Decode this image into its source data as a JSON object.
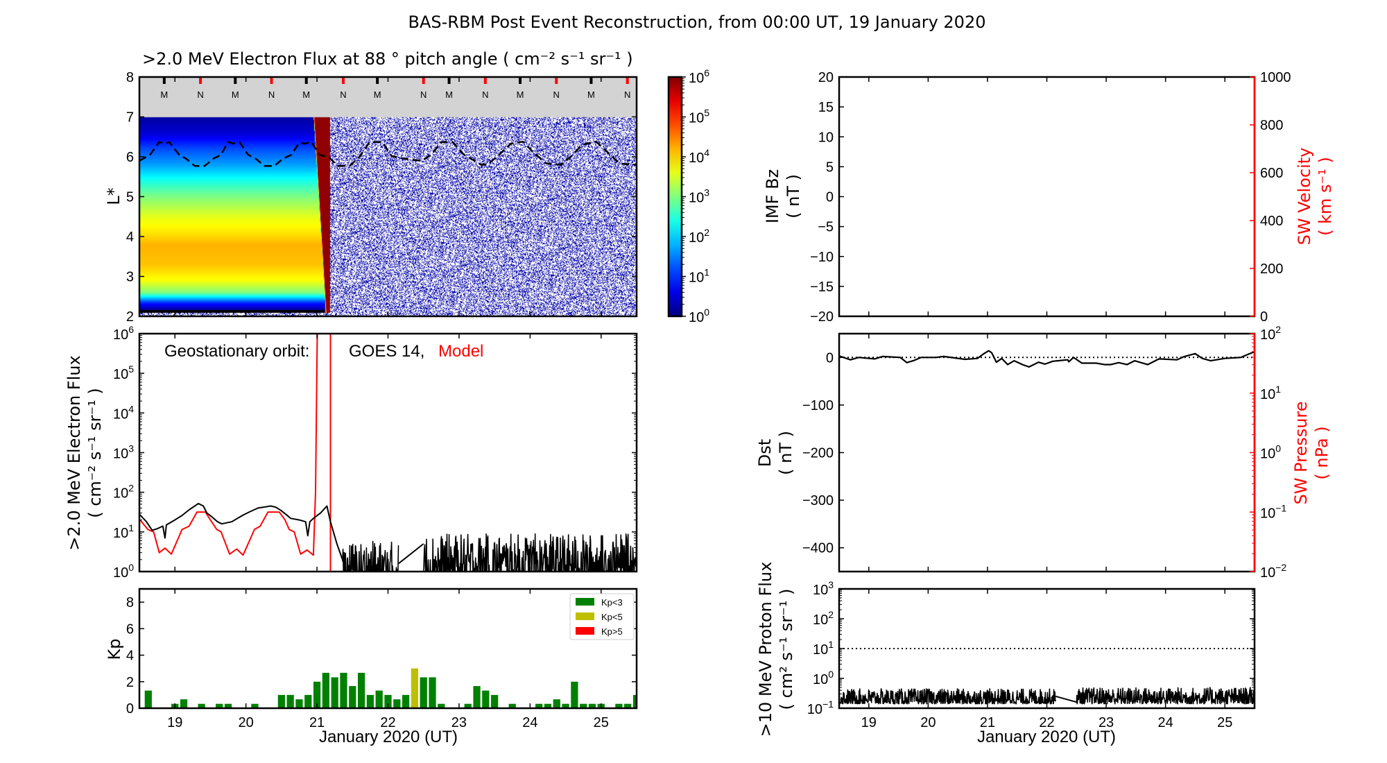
{
  "figure_title": "BAS-RBM Post Event Reconstruction, from 00:00 UT, 19 January 2020",
  "colors": {
    "observed": "#000000",
    "model": "#ff0000",
    "gray_band": "#d3d3d3",
    "kp_low": "#008000",
    "kp_mid": "#bfbf00",
    "kp_high": "#ff0000"
  },
  "chart_data": [
    {
      "type": "heatmap",
      "title": ">2.0 MeV Electron Flux at 88 ° pitch angle ( cm⁻² s⁻¹ sr⁻¹ )",
      "ylabel": "L*",
      "xlim": [
        18.5,
        25.5
      ],
      "ylim": [
        2,
        8
      ],
      "yticks": [
        2,
        3,
        4,
        5,
        6,
        7,
        8
      ],
      "xticks": [
        19,
        20,
        21,
        22,
        23,
        24,
        25
      ],
      "colormap": "jet",
      "colorbar": {
        "scale": "log",
        "range_exp": [
          0,
          6
        ],
        "ticks_exp": [
          0,
          1,
          2,
          3,
          4,
          5,
          6
        ]
      },
      "flux_profile_log10_before_event": [
        [
          2.1,
          0.1
        ],
        [
          2.2,
          0.3
        ],
        [
          2.35,
          1.0
        ],
        [
          2.5,
          2.2
        ],
        [
          2.6,
          3.0
        ],
        [
          2.9,
          3.7
        ],
        [
          3.3,
          4.1
        ],
        [
          3.8,
          4.2
        ],
        [
          4.1,
          3.9
        ],
        [
          4.5,
          3.6
        ],
        [
          5.0,
          3.0
        ],
        [
          5.4,
          2.4
        ],
        [
          5.8,
          1.7
        ],
        [
          6.2,
          1.2
        ],
        [
          6.6,
          0.5
        ],
        [
          7.0,
          0.2
        ]
      ],
      "event_strip": {
        "left_at_L7": 20.96,
        "left_at_L2": 21.13,
        "right": 21.18,
        "log10_flux": 5.9
      },
      "goes_lstar": [
        [
          18.5,
          5.9
        ],
        [
          18.65,
          6.05
        ],
        [
          18.78,
          6.37
        ],
        [
          18.85,
          6.33
        ],
        [
          18.92,
          6.37
        ],
        [
          19.06,
          6.05
        ],
        [
          19.16,
          5.95
        ],
        [
          19.28,
          5.77
        ],
        [
          19.42,
          5.77
        ],
        [
          19.54,
          5.95
        ],
        [
          19.65,
          6.05
        ],
        [
          19.75,
          6.37
        ],
        [
          19.82,
          6.33
        ],
        [
          19.91,
          6.37
        ],
        [
          20.03,
          6.05
        ],
        [
          20.14,
          5.95
        ],
        [
          20.26,
          5.77
        ],
        [
          20.4,
          5.77
        ],
        [
          20.52,
          5.95
        ],
        [
          20.64,
          6.05
        ],
        [
          20.75,
          6.35
        ],
        [
          20.83,
          6.33
        ],
        [
          20.92,
          6.37
        ],
        [
          21.04,
          6.05
        ],
        [
          21.18,
          5.97
        ],
        [
          21.29,
          5.77
        ],
        [
          21.46,
          5.77
        ],
        [
          21.6,
          6.0
        ],
        [
          21.74,
          6.37
        ],
        [
          21.92,
          6.37
        ],
        [
          22.05,
          6.02
        ],
        [
          22.23,
          5.95
        ],
        [
          22.47,
          5.9
        ],
        [
          22.61,
          6.05
        ],
        [
          22.75,
          6.37
        ],
        [
          22.91,
          6.37
        ],
        [
          23.07,
          6.05
        ],
        [
          23.17,
          5.95
        ],
        [
          23.31,
          5.8
        ],
        [
          23.4,
          5.8
        ],
        [
          23.57,
          6.06
        ],
        [
          23.73,
          6.33
        ],
        [
          23.9,
          6.38
        ],
        [
          24.04,
          6.12
        ],
        [
          24.23,
          5.83
        ],
        [
          24.43,
          5.8
        ],
        [
          24.59,
          6.03
        ],
        [
          24.73,
          6.3
        ],
        [
          24.93,
          6.38
        ],
        [
          25.05,
          6.18
        ],
        [
          25.26,
          5.83
        ],
        [
          25.5,
          5.8
        ]
      ],
      "orbit_markers": [
        {
          "label": "M",
          "x": 18.85
        },
        {
          "label": "N",
          "x": 19.36
        },
        {
          "label": "M",
          "x": 19.85
        },
        {
          "label": "N",
          "x": 20.36
        },
        {
          "label": "M",
          "x": 20.85
        },
        {
          "label": "N",
          "x": 21.37
        },
        {
          "label": "M",
          "x": 21.85
        },
        {
          "label": "N",
          "x": 22.5
        },
        {
          "label": "M",
          "x": 22.86
        },
        {
          "label": "N",
          "x": 23.37
        },
        {
          "label": "M",
          "x": 23.86
        },
        {
          "label": "N",
          "x": 24.37
        },
        {
          "label": "M",
          "x": 24.86
        },
        {
          "label": "N",
          "x": 25.37
        }
      ]
    },
    {
      "type": "line",
      "ylabel": [
        ">2.0 MeV Electron Flux",
        "( cm⁻² s⁻¹ sr⁻¹ )"
      ],
      "annotation": {
        "prefix": "Geostationary orbit:",
        "observed": "GOES 14,",
        "model": "Model"
      },
      "xlim": [
        18.5,
        25.5
      ],
      "yscale": "log",
      "ylim": [
        1,
        1000000
      ],
      "yticks_exp": [
        0,
        1,
        2,
        3,
        4,
        5,
        6
      ],
      "series": [
        {
          "name": "GOES 14",
          "color": "#000000",
          "points": [
            [
              18.5,
              28
            ],
            [
              18.6,
              18
            ],
            [
              18.68,
              11
            ],
            [
              18.75,
              12
            ],
            [
              18.83,
              14
            ],
            [
              18.86,
              7
            ],
            [
              18.88,
              15
            ],
            [
              19.0,
              20
            ],
            [
              19.1,
              26
            ],
            [
              19.2,
              36
            ],
            [
              19.33,
              52
            ],
            [
              19.4,
              45
            ],
            [
              19.45,
              30
            ],
            [
              19.52,
              24
            ],
            [
              19.6,
              18
            ],
            [
              19.66,
              16
            ],
            [
              19.8,
              18
            ],
            [
              19.95,
              26
            ],
            [
              20.05,
              32
            ],
            [
              20.17,
              40
            ],
            [
              20.35,
              45
            ],
            [
              20.42,
              42
            ],
            [
              20.49,
              35
            ],
            [
              20.56,
              28
            ],
            [
              20.63,
              22
            ],
            [
              20.75,
              20
            ],
            [
              20.84,
              18
            ],
            [
              20.87,
              8
            ],
            [
              20.9,
              18
            ],
            [
              20.95,
              22
            ],
            [
              21.05,
              30
            ],
            [
              21.14,
              45
            ],
            [
              21.19,
              18
            ],
            [
              21.28,
              5
            ],
            [
              21.36,
              2
            ]
          ],
          "noisy_segments": [
            {
              "x": [
                21.36,
                22.15
              ],
              "min": 0.5,
              "max": 6
            },
            {
              "x": [
                22.5,
                25.5
              ],
              "min": 0.6,
              "max": 9
            }
          ],
          "gap_line": [
            [
              22.15,
              1.6
            ],
            [
              22.5,
              5
            ]
          ]
        },
        {
          "name": "Model",
          "color": "#ff0000",
          "points": [
            [
              18.5,
              21
            ],
            [
              18.62,
              11.5
            ],
            [
              18.7,
              10
            ],
            [
              18.78,
              3
            ],
            [
              18.86,
              3.9
            ],
            [
              18.95,
              2.75
            ],
            [
              19.1,
              11.5
            ],
            [
              19.2,
              14
            ],
            [
              19.31,
              31.6
            ],
            [
              19.43,
              31.6
            ],
            [
              19.5,
              20
            ],
            [
              19.59,
              11.5
            ],
            [
              19.65,
              10
            ],
            [
              19.77,
              2.75
            ],
            [
              19.87,
              3.7
            ],
            [
              19.96,
              2.6
            ],
            [
              20.12,
              11.5
            ],
            [
              20.2,
              14
            ],
            [
              20.31,
              31.6
            ],
            [
              20.47,
              31.6
            ],
            [
              20.55,
              20
            ],
            [
              20.61,
              11.5
            ],
            [
              20.68,
              10
            ],
            [
              20.77,
              2.75
            ],
            [
              20.86,
              3.5
            ],
            [
              20.95,
              2.6
            ],
            [
              20.98,
              100
            ],
            [
              21.01,
              10000000
            ]
          ],
          "drop": [
            [
              21.19,
              10000000
            ],
            [
              21.19,
              0.1
            ]
          ]
        }
      ]
    },
    {
      "type": "bar",
      "ylabel": "Kp",
      "xlabel": "January 2020 (UT)",
      "xlim": [
        18.5,
        25.5
      ],
      "ylim": [
        0,
        9
      ],
      "yticks": [
        0,
        2,
        4,
        6,
        8
      ],
      "xticks": [
        19,
        20,
        21,
        22,
        23,
        24,
        25
      ],
      "legend": {
        "position": "top-right",
        "entries": [
          {
            "label": "Kp<3",
            "color": "#008000"
          },
          {
            "label": "Kp<5",
            "color": "#bfbf00"
          },
          {
            "label": "Kp>5",
            "color": "#ff0000"
          }
        ]
      },
      "x_first": 18.625,
      "x_step_days": 0.125,
      "values": [
        1.33,
        0,
        0,
        0.33,
        0.67,
        0,
        0.33,
        0,
        0.33,
        0.33,
        0,
        0,
        0.33,
        0,
        0,
        1,
        1,
        0.67,
        1,
        2,
        2.67,
        2.33,
        2.67,
        1.67,
        2.67,
        1,
        1.33,
        1,
        0.67,
        1,
        3,
        2.33,
        2.33,
        0.33,
        0,
        0,
        0.33,
        1.67,
        1.33,
        1,
        0,
        0.33,
        0,
        0,
        0.33,
        0.33,
        0.67,
        0.33,
        2,
        0.33,
        0.33,
        0.33,
        0,
        0.33,
        0.33,
        1
      ]
    },
    {
      "type": "line",
      "ylabel": [
        "IMF Bz",
        "( nT )"
      ],
      "ylabel_right": [
        "SW Velocity",
        "( km s⁻¹ )"
      ],
      "xlim": [
        18.5,
        25.5
      ],
      "ylim": [
        -20,
        20
      ],
      "yticks": [
        -20,
        -15,
        -10,
        -5,
        0,
        5,
        10,
        15,
        20
      ],
      "ylim_right": [
        0,
        1000
      ],
      "yticks_right": [
        0,
        200,
        400,
        600,
        800,
        1000
      ],
      "series": []
    },
    {
      "type": "line",
      "ylabel": [
        "Dst",
        "( nT )"
      ],
      "ylabel_right": [
        "SW Pressure",
        "( nPa )"
      ],
      "xlim": [
        18.5,
        25.5
      ],
      "ylim": [
        -450,
        50
      ],
      "yticks": [
        -400,
        -300,
        -200,
        -100,
        0
      ],
      "reference_line": 0,
      "ylim_right": [
        0.01,
        100
      ],
      "yscale_right": "log",
      "yticks_right_exp": [
        -2,
        -1,
        0,
        1,
        2
      ],
      "series": [
        {
          "name": "Dst",
          "color": "#000000",
          "points": [
            [
              18.5,
              3
            ],
            [
              18.69,
              -5
            ],
            [
              18.83,
              0
            ],
            [
              19.1,
              -3
            ],
            [
              19.23,
              2
            ],
            [
              19.53,
              0
            ],
            [
              19.64,
              -11
            ],
            [
              19.77,
              -6
            ],
            [
              19.88,
              0
            ],
            [
              20.13,
              0
            ],
            [
              20.26,
              2
            ],
            [
              20.62,
              -4
            ],
            [
              20.83,
              -2
            ],
            [
              20.94,
              8
            ],
            [
              21.02,
              14
            ],
            [
              21.07,
              10
            ],
            [
              21.15,
              -10
            ],
            [
              21.24,
              -2
            ],
            [
              21.34,
              -15
            ],
            [
              21.45,
              -7
            ],
            [
              21.59,
              -15
            ],
            [
              21.7,
              -20
            ],
            [
              21.86,
              -10
            ],
            [
              21.97,
              -14
            ],
            [
              22.1,
              -8
            ],
            [
              22.35,
              -5
            ],
            [
              22.37,
              -9
            ],
            [
              22.45,
              0
            ],
            [
              22.59,
              -12
            ],
            [
              22.83,
              -12
            ],
            [
              22.97,
              -15
            ],
            [
              23.08,
              -15
            ],
            [
              23.21,
              -11
            ],
            [
              23.35,
              -15
            ],
            [
              23.48,
              -7
            ],
            [
              23.7,
              -15
            ],
            [
              23.89,
              -3
            ],
            [
              24.19,
              -5
            ],
            [
              24.32,
              2
            ],
            [
              24.5,
              8
            ],
            [
              24.62,
              -2
            ],
            [
              24.76,
              -7
            ],
            [
              25.0,
              -2
            ],
            [
              25.27,
              0
            ],
            [
              25.38,
              6
            ],
            [
              25.5,
              12
            ]
          ]
        }
      ]
    },
    {
      "type": "line",
      "ylabel": [
        ">10 MeV Proton Flux",
        "( cm² s⁻¹ sr⁻¹ )"
      ],
      "xlabel": "January 2020 (UT)",
      "xlim": [
        18.5,
        25.5
      ],
      "xticks": [
        19,
        20,
        21,
        22,
        23,
        24,
        25
      ],
      "yscale": "log",
      "ylim": [
        0.1,
        1000
      ],
      "yticks_exp": [
        -1,
        0,
        1,
        2,
        3
      ],
      "reference_line": 10,
      "series": [
        {
          "color": "#000000",
          "noisy_segments": [
            {
              "x": [
                18.5,
                22.15
              ],
              "min": 0.14,
              "max": 0.45
            },
            {
              "x": [
                22.5,
                25.5
              ],
              "min": 0.14,
              "max": 0.5
            }
          ],
          "gap_line": [
            [
              22.15,
              0.25
            ],
            [
              22.5,
              0.16
            ]
          ]
        }
      ]
    }
  ]
}
